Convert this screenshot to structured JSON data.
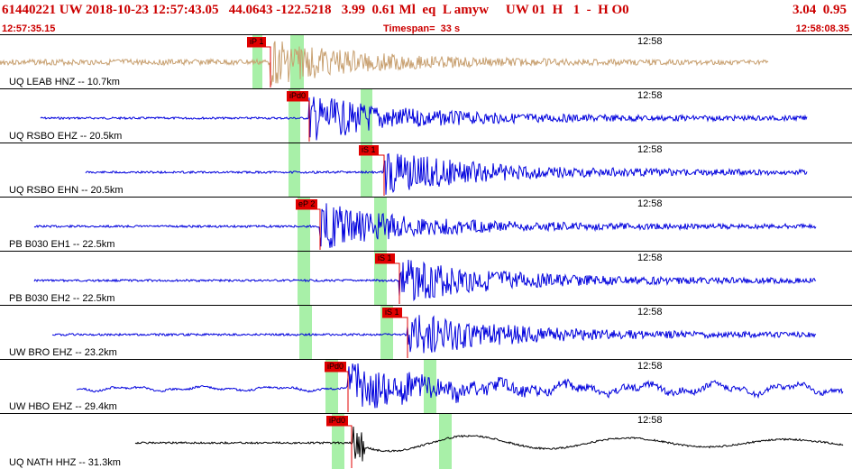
{
  "header": {
    "title": "61440221 UW 2018-10-23 12:57:43.05   44.0643 -122.5218   3.99  0.61 Ml  eq  L amyw     UW 01  H   1  -  H O0",
    "right": "3.04  0.95",
    "start_time": "12:57:35.15",
    "timespan": "Timespan=  33 s",
    "end_time": "12:58:08.35"
  },
  "colors": {
    "header_text": "#cc0000",
    "pick_marker": "#e00000",
    "window_shade": "#a8f0a8",
    "trace_tan": "#c8a070",
    "trace_blue": "#0000dd",
    "trace_black": "#000000"
  },
  "traces": [
    {
      "label": "UQ LEAB HNZ -- 10.7km",
      "time": "12:58",
      "color": "tan",
      "pick": "iP 1",
      "seed": 3
    },
    {
      "label": "UQ RSBO EHZ -- 20.5km",
      "time": "12:58",
      "color": "blue",
      "pick": "iPd0",
      "seed": 7
    },
    {
      "label": "UQ RSBO EHN -- 20.5km",
      "time": "12:58",
      "color": "blue",
      "pick": "iS 1",
      "seed": 11
    },
    {
      "label": "PB B030 EH1 -- 22.5km",
      "time": "12:58",
      "color": "blue",
      "pick": "eP 2",
      "seed": 13
    },
    {
      "label": "PB B030 EH2 -- 22.5km",
      "time": "12:58",
      "color": "blue",
      "pick": "iS 1",
      "seed": 17
    },
    {
      "label": "UW BRO EHZ -- 23.2km",
      "time": "12:58",
      "color": "blue",
      "pick": "iS 1",
      "seed": 19
    },
    {
      "label": "UW HBO EHZ -- 29.4km",
      "time": "12:58",
      "color": "blue",
      "pick": "iPd0",
      "seed": 23
    },
    {
      "label": "UQ NATH HHZ -- 31.3km",
      "time": "12:58",
      "color": "black",
      "pick": "iPd0",
      "seed": 29
    }
  ]
}
